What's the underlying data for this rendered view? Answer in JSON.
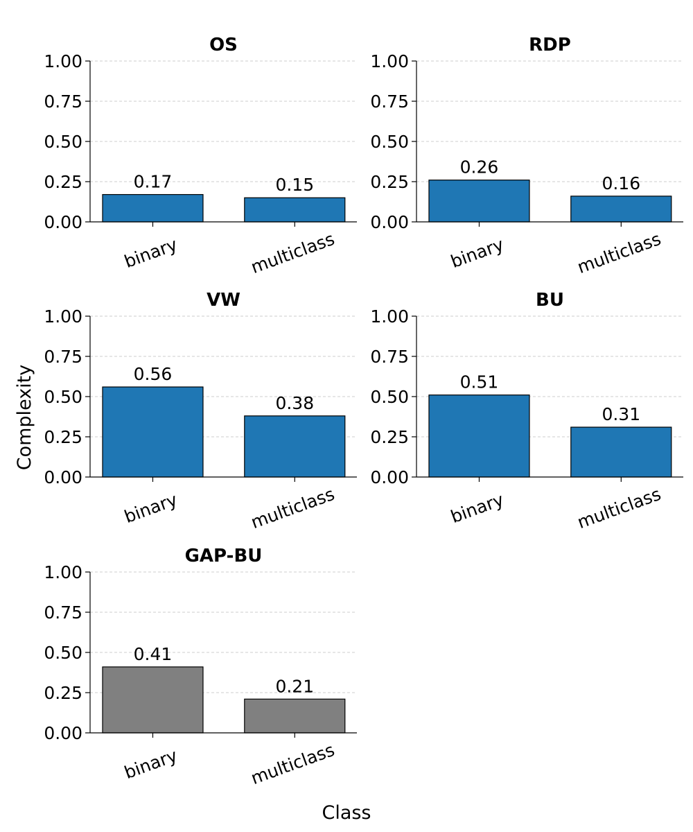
{
  "chart_data": {
    "type": "bar",
    "xlabel": "Class",
    "ylabel": "Complexity",
    "ylim": [
      0,
      1
    ],
    "yticks": [
      "0.00",
      "0.25",
      "0.50",
      "0.75",
      "1.00"
    ],
    "grid": "y-dashed",
    "categories": [
      "binary",
      "multiclass"
    ],
    "panels": [
      {
        "title": "OS",
        "values": [
          0.17,
          0.15
        ],
        "labels": [
          "0.17",
          "0.15"
        ],
        "color": "#1f77b4"
      },
      {
        "title": "RDP",
        "values": [
          0.26,
          0.16
        ],
        "labels": [
          "0.26",
          "0.16"
        ],
        "color": "#1f77b4"
      },
      {
        "title": "VW",
        "values": [
          0.56,
          0.38
        ],
        "labels": [
          "0.56",
          "0.38"
        ],
        "color": "#1f77b4"
      },
      {
        "title": "BU",
        "values": [
          0.51,
          0.31
        ],
        "labels": [
          "0.51",
          "0.31"
        ],
        "color": "#1f77b4"
      },
      {
        "title": "GAP-BU",
        "values": [
          0.41,
          0.21
        ],
        "labels": [
          "0.41",
          "0.21"
        ],
        "color": "#808080"
      }
    ]
  }
}
